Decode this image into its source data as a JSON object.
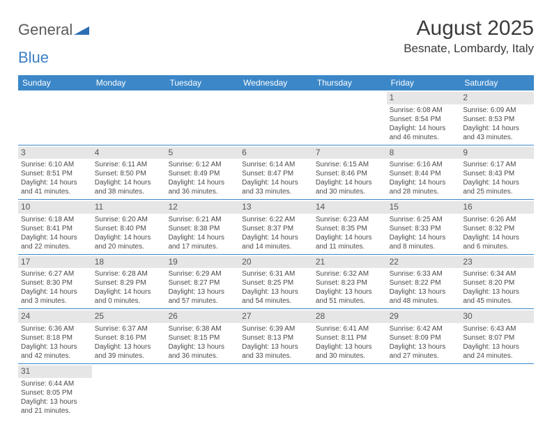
{
  "header": {
    "logo_general": "General",
    "logo_blue": "Blue",
    "month_title": "August 2025",
    "location": "Besnate, Lombardy, Italy"
  },
  "colors": {
    "header_bg": "#3b87c8",
    "header_text": "#ffffff",
    "daynum_bg": "#e6e6e6",
    "row_border": "#3b87c8",
    "logo_blue": "#3b7fc4",
    "text": "#4a4a4a"
  },
  "weekdays": [
    "Sunday",
    "Monday",
    "Tuesday",
    "Wednesday",
    "Thursday",
    "Friday",
    "Saturday"
  ],
  "weeks": [
    [
      null,
      null,
      null,
      null,
      null,
      {
        "num": "1",
        "sunrise": "Sunrise: 6:08 AM",
        "sunset": "Sunset: 8:54 PM",
        "daylight": "Daylight: 14 hours and 46 minutes."
      },
      {
        "num": "2",
        "sunrise": "Sunrise: 6:09 AM",
        "sunset": "Sunset: 8:53 PM",
        "daylight": "Daylight: 14 hours and 43 minutes."
      }
    ],
    [
      {
        "num": "3",
        "sunrise": "Sunrise: 6:10 AM",
        "sunset": "Sunset: 8:51 PM",
        "daylight": "Daylight: 14 hours and 41 minutes."
      },
      {
        "num": "4",
        "sunrise": "Sunrise: 6:11 AM",
        "sunset": "Sunset: 8:50 PM",
        "daylight": "Daylight: 14 hours and 38 minutes."
      },
      {
        "num": "5",
        "sunrise": "Sunrise: 6:12 AM",
        "sunset": "Sunset: 8:49 PM",
        "daylight": "Daylight: 14 hours and 36 minutes."
      },
      {
        "num": "6",
        "sunrise": "Sunrise: 6:14 AM",
        "sunset": "Sunset: 8:47 PM",
        "daylight": "Daylight: 14 hours and 33 minutes."
      },
      {
        "num": "7",
        "sunrise": "Sunrise: 6:15 AM",
        "sunset": "Sunset: 8:46 PM",
        "daylight": "Daylight: 14 hours and 30 minutes."
      },
      {
        "num": "8",
        "sunrise": "Sunrise: 6:16 AM",
        "sunset": "Sunset: 8:44 PM",
        "daylight": "Daylight: 14 hours and 28 minutes."
      },
      {
        "num": "9",
        "sunrise": "Sunrise: 6:17 AM",
        "sunset": "Sunset: 8:43 PM",
        "daylight": "Daylight: 14 hours and 25 minutes."
      }
    ],
    [
      {
        "num": "10",
        "sunrise": "Sunrise: 6:18 AM",
        "sunset": "Sunset: 8:41 PM",
        "daylight": "Daylight: 14 hours and 22 minutes."
      },
      {
        "num": "11",
        "sunrise": "Sunrise: 6:20 AM",
        "sunset": "Sunset: 8:40 PM",
        "daylight": "Daylight: 14 hours and 20 minutes."
      },
      {
        "num": "12",
        "sunrise": "Sunrise: 6:21 AM",
        "sunset": "Sunset: 8:38 PM",
        "daylight": "Daylight: 14 hours and 17 minutes."
      },
      {
        "num": "13",
        "sunrise": "Sunrise: 6:22 AM",
        "sunset": "Sunset: 8:37 PM",
        "daylight": "Daylight: 14 hours and 14 minutes."
      },
      {
        "num": "14",
        "sunrise": "Sunrise: 6:23 AM",
        "sunset": "Sunset: 8:35 PM",
        "daylight": "Daylight: 14 hours and 11 minutes."
      },
      {
        "num": "15",
        "sunrise": "Sunrise: 6:25 AM",
        "sunset": "Sunset: 8:33 PM",
        "daylight": "Daylight: 14 hours and 8 minutes."
      },
      {
        "num": "16",
        "sunrise": "Sunrise: 6:26 AM",
        "sunset": "Sunset: 8:32 PM",
        "daylight": "Daylight: 14 hours and 6 minutes."
      }
    ],
    [
      {
        "num": "17",
        "sunrise": "Sunrise: 6:27 AM",
        "sunset": "Sunset: 8:30 PM",
        "daylight": "Daylight: 14 hours and 3 minutes."
      },
      {
        "num": "18",
        "sunrise": "Sunrise: 6:28 AM",
        "sunset": "Sunset: 8:29 PM",
        "daylight": "Daylight: 14 hours and 0 minutes."
      },
      {
        "num": "19",
        "sunrise": "Sunrise: 6:29 AM",
        "sunset": "Sunset: 8:27 PM",
        "daylight": "Daylight: 13 hours and 57 minutes."
      },
      {
        "num": "20",
        "sunrise": "Sunrise: 6:31 AM",
        "sunset": "Sunset: 8:25 PM",
        "daylight": "Daylight: 13 hours and 54 minutes."
      },
      {
        "num": "21",
        "sunrise": "Sunrise: 6:32 AM",
        "sunset": "Sunset: 8:23 PM",
        "daylight": "Daylight: 13 hours and 51 minutes."
      },
      {
        "num": "22",
        "sunrise": "Sunrise: 6:33 AM",
        "sunset": "Sunset: 8:22 PM",
        "daylight": "Daylight: 13 hours and 48 minutes."
      },
      {
        "num": "23",
        "sunrise": "Sunrise: 6:34 AM",
        "sunset": "Sunset: 8:20 PM",
        "daylight": "Daylight: 13 hours and 45 minutes."
      }
    ],
    [
      {
        "num": "24",
        "sunrise": "Sunrise: 6:36 AM",
        "sunset": "Sunset: 8:18 PM",
        "daylight": "Daylight: 13 hours and 42 minutes."
      },
      {
        "num": "25",
        "sunrise": "Sunrise: 6:37 AM",
        "sunset": "Sunset: 8:16 PM",
        "daylight": "Daylight: 13 hours and 39 minutes."
      },
      {
        "num": "26",
        "sunrise": "Sunrise: 6:38 AM",
        "sunset": "Sunset: 8:15 PM",
        "daylight": "Daylight: 13 hours and 36 minutes."
      },
      {
        "num": "27",
        "sunrise": "Sunrise: 6:39 AM",
        "sunset": "Sunset: 8:13 PM",
        "daylight": "Daylight: 13 hours and 33 minutes."
      },
      {
        "num": "28",
        "sunrise": "Sunrise: 6:41 AM",
        "sunset": "Sunset: 8:11 PM",
        "daylight": "Daylight: 13 hours and 30 minutes."
      },
      {
        "num": "29",
        "sunrise": "Sunrise: 6:42 AM",
        "sunset": "Sunset: 8:09 PM",
        "daylight": "Daylight: 13 hours and 27 minutes."
      },
      {
        "num": "30",
        "sunrise": "Sunrise: 6:43 AM",
        "sunset": "Sunset: 8:07 PM",
        "daylight": "Daylight: 13 hours and 24 minutes."
      }
    ],
    [
      {
        "num": "31",
        "sunrise": "Sunrise: 6:44 AM",
        "sunset": "Sunset: 8:05 PM",
        "daylight": "Daylight: 13 hours and 21 minutes."
      },
      null,
      null,
      null,
      null,
      null,
      null
    ]
  ]
}
